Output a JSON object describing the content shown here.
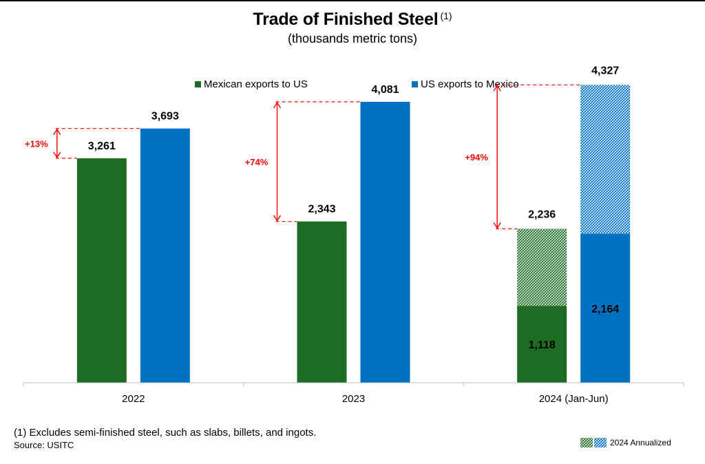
{
  "chart_data": {
    "type": "bar",
    "title": "Trade of Finished Steel",
    "title_footnote_marker": "(1)",
    "subtitle": "(thousands metric tons)",
    "categories": [
      "2022",
      "2023",
      "2024 (Jan-Jun)"
    ],
    "series": [
      {
        "name": "Mexican exports to US",
        "color": "#1e6b23",
        "values": [
          3261,
          2343,
          1118
        ],
        "value_labels": [
          "3,261",
          "2,343",
          "1,118"
        ],
        "annualized_total": [
          null,
          null,
          2236
        ],
        "annualized_total_label": [
          null,
          null,
          "2,236"
        ]
      },
      {
        "name": "US exports to Mexico",
        "color": "#0070c0",
        "values": [
          3693,
          4081,
          2164
        ],
        "value_labels": [
          "3,693",
          "4,081",
          "2,164"
        ],
        "annualized_total": [
          null,
          null,
          4327
        ],
        "annualized_total_label": [
          null,
          null,
          "4,327"
        ]
      }
    ],
    "differences": [
      "+13%",
      "+74%",
      "+94%"
    ],
    "ylim": [
      0,
      5000
    ],
    "grid": false,
    "annualized_legend_label": "2024 Annualized",
    "annotation_color": "#ff0000"
  },
  "footnote": "(1) Excludes semi-finished steel, such as slabs, billets, and ingots.",
  "source": "Source: USITC"
}
